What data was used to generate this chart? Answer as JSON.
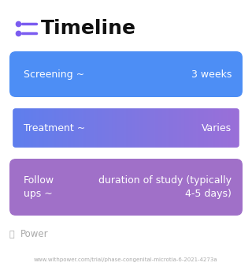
{
  "title": "Timeline",
  "title_icon_color": "#7B5CF0",
  "title_fontsize": 18,
  "title_color": "#111111",
  "bg_color": "#ffffff",
  "boxes": [
    {
      "label_left": "Screening ~",
      "label_right": "3 weeks",
      "color_left": "#4D8EF5",
      "color_right": "#4D8EF5",
      "text_color": "#ffffff",
      "gradient": false
    },
    {
      "label_left": "Treatment ~",
      "label_right": "Varies",
      "color_left": "#5E7FEE",
      "color_right": "#9B6FD8",
      "text_color": "#ffffff",
      "gradient": true
    },
    {
      "label_left": "Follow\nups ~",
      "label_right": "duration of study (typically\n4-5 days)",
      "color_left": "#A070C8",
      "color_right": "#A070C8",
      "text_color": "#ffffff",
      "gradient": false
    }
  ],
  "footer_text": "www.withpower.com/trial/phase-congenital-microtia-6-2021-4273a",
  "footer_color": "#aaaaaa",
  "footer_fontsize": 5.0,
  "power_text": "Power",
  "power_color": "#aaaaaa",
  "power_fontsize": 8.5
}
